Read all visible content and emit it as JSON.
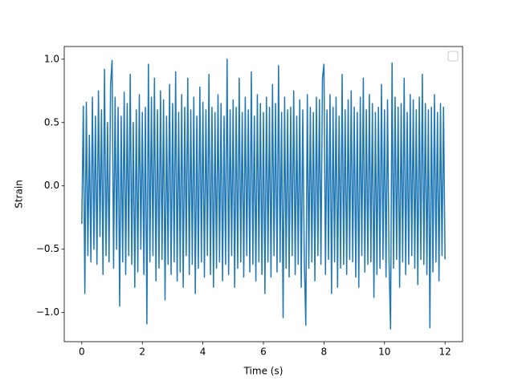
{
  "chart_data": {
    "type": "line",
    "xlabel": "Time (s)",
    "ylabel": "Strain",
    "xlim": [
      -0.58,
      12.58
    ],
    "ylim": [
      -1.23,
      1.1
    ],
    "xticks": [
      0,
      2,
      4,
      6,
      8,
      10,
      12
    ],
    "yticks": [
      {
        "value": -1.0,
        "label": "−1.0"
      },
      {
        "value": -0.5,
        "label": "−0.5"
      },
      {
        "value": 0.0,
        "label": "0.0"
      },
      {
        "value": 0.5,
        "label": "0.5"
      },
      {
        "value": 1.0,
        "label": "1.0"
      }
    ],
    "legend": "upper right",
    "series": [
      {
        "color": "#1f77b4",
        "x": [
          0,
          0.05,
          0.1,
          0.15,
          0.2,
          0.25,
          0.3,
          0.35,
          0.4,
          0.45,
          0.5,
          0.55,
          0.6,
          0.65,
          0.7,
          0.75,
          0.8,
          0.85,
          0.9,
          0.95,
          1,
          1.05,
          1.1,
          1.15,
          1.2,
          1.25,
          1.3,
          1.35,
          1.4,
          1.45,
          1.5,
          1.55,
          1.6,
          1.65,
          1.7,
          1.75,
          1.8,
          1.85,
          1.9,
          1.95,
          2,
          2.05,
          2.1,
          2.15,
          2.2,
          2.25,
          2.3,
          2.35,
          2.4,
          2.45,
          2.5,
          2.55,
          2.6,
          2.65,
          2.7,
          2.75,
          2.8,
          2.85,
          2.9,
          2.95,
          3,
          3.05,
          3.1,
          3.15,
          3.2,
          3.25,
          3.3,
          3.35,
          3.4,
          3.45,
          3.5,
          3.55,
          3.6,
          3.65,
          3.7,
          3.75,
          3.8,
          3.85,
          3.9,
          3.95,
          4,
          4.05,
          4.1,
          4.15,
          4.2,
          4.25,
          4.3,
          4.35,
          4.4,
          4.45,
          4.5,
          4.55,
          4.6,
          4.65,
          4.7,
          4.75,
          4.8,
          4.85,
          4.9,
          4.95,
          5,
          5.05,
          5.1,
          5.15,
          5.2,
          5.25,
          5.3,
          5.35,
          5.4,
          5.45,
          5.5,
          5.55,
          5.6,
          5.65,
          5.7,
          5.75,
          5.8,
          5.85,
          5.9,
          5.95,
          6,
          6.05,
          6.1,
          6.15,
          6.2,
          6.25,
          6.3,
          6.35,
          6.4,
          6.45,
          6.5,
          6.55,
          6.6,
          6.65,
          6.7,
          6.75,
          6.8,
          6.85,
          6.9,
          6.95,
          7,
          7.05,
          7.1,
          7.15,
          7.2,
          7.25,
          7.3,
          7.35,
          7.4,
          7.45,
          7.5,
          7.55,
          7.6,
          7.65,
          7.7,
          7.75,
          7.8,
          7.85,
          7.9,
          7.95,
          8,
          8.05,
          8.1,
          8.15,
          8.2,
          8.25,
          8.3,
          8.35,
          8.4,
          8.45,
          8.5,
          8.55,
          8.6,
          8.65,
          8.7,
          8.75,
          8.8,
          8.85,
          8.9,
          8.95,
          9,
          9.05,
          9.1,
          9.15,
          9.2,
          9.25,
          9.3,
          9.35,
          9.4,
          9.45,
          9.5,
          9.55,
          9.6,
          9.65,
          9.7,
          9.75,
          9.8,
          9.85,
          9.9,
          9.95,
          10,
          10.05,
          10.1,
          10.15,
          10.2,
          10.25,
          10.3,
          10.35,
          10.4,
          10.45,
          10.5,
          10.55,
          10.6,
          10.65,
          10.7,
          10.75,
          10.8,
          10.85,
          10.9,
          10.95,
          11,
          11.05,
          11.1,
          11.15,
          11.2,
          11.25,
          11.3,
          11.35,
          11.4,
          11.45,
          11.5,
          11.55,
          11.6,
          11.65,
          11.7,
          11.75,
          11.8,
          11.85,
          11.9,
          11.95,
          12
        ],
        "values": [
          -0.3,
          0.63,
          -0.85,
          0.66,
          -0.55,
          0.4,
          -0.6,
          0.7,
          -0.5,
          0.55,
          -0.62,
          0.75,
          -0.4,
          0.6,
          -0.7,
          0.92,
          -0.55,
          0.5,
          -0.6,
          0.8,
          0.99,
          -0.65,
          0.7,
          -0.5,
          0.62,
          -0.95,
          0.55,
          -0.6,
          0.74,
          -0.7,
          0.65,
          -0.55,
          0.88,
          -0.62,
          0.5,
          -0.8,
          0.6,
          -0.68,
          0.72,
          -0.5,
          0.58,
          -0.7,
          0.62,
          -1.09,
          0.96,
          -0.6,
          0.7,
          -0.55,
          0.85,
          -0.75,
          0.6,
          -0.65,
          0.75,
          -0.58,
          0.68,
          -0.9,
          0.55,
          -0.62,
          0.8,
          -0.7,
          0.65,
          -0.6,
          0.9,
          -0.75,
          0.58,
          -0.68,
          0.72,
          -0.8,
          0.62,
          -0.55,
          0.85,
          -0.7,
          0.6,
          -0.62,
          0.7,
          -0.85,
          0.55,
          -0.65,
          0.78,
          -0.6,
          0.66,
          -0.72,
          0.6,
          -0.55,
          0.88,
          -0.7,
          0.62,
          -0.8,
          0.58,
          -0.65,
          0.72,
          -0.6,
          0.65,
          -0.75,
          0.55,
          -0.62,
          1.0,
          -0.7,
          0.6,
          -0.55,
          0.68,
          -0.8,
          0.62,
          -0.65,
          0.85,
          -0.6,
          0.58,
          -0.72,
          0.7,
          -0.55,
          0.6,
          -0.68,
          0.9,
          -0.62,
          0.55,
          -0.75,
          0.72,
          -0.6,
          0.65,
          -0.7,
          0.58,
          -0.85,
          0.7,
          -0.6,
          0.62,
          -0.72,
          0.8,
          -0.55,
          0.65,
          -0.68,
          0.95,
          -0.6,
          0.58,
          -1.04,
          0.7,
          -0.65,
          0.6,
          -0.72,
          0.62,
          -0.55,
          0.75,
          -0.7,
          0.55,
          -0.62,
          0.68,
          -0.8,
          0.6,
          -0.58,
          -1.1,
          0.72,
          -0.65,
          0.62,
          -0.6,
          0.58,
          -0.75,
          0.7,
          -0.55,
          0.68,
          -0.62,
          0.85,
          0.96,
          -0.7,
          0.6,
          -0.58,
          0.72,
          -0.85,
          0.62,
          -0.6,
          0.7,
          -0.8,
          0.55,
          -0.65,
          0.88,
          -0.62,
          0.6,
          -0.7,
          0.68,
          -0.58,
          0.75,
          -0.6,
          0.62,
          -0.72,
          0.58,
          -0.8,
          0.7,
          -0.55,
          0.85,
          -0.68,
          0.6,
          -0.62,
          0.72,
          -0.6,
          0.65,
          -0.88,
          0.58,
          -0.7,
          0.62,
          -0.65,
          0.8,
          -0.58,
          0.6,
          -0.72,
          0.68,
          -0.6,
          -1.13,
          0.97,
          -0.65,
          0.7,
          -0.58,
          0.62,
          -0.8,
          0.65,
          -0.6,
          0.85,
          -0.7,
          0.58,
          -0.62,
          0.72,
          -0.55,
          0.68,
          -0.65,
          0.6,
          -0.78,
          0.7,
          -0.58,
          0.88,
          -0.62,
          0.65,
          -0.7,
          0.6,
          -1.12,
          0.62,
          -0.68,
          0.72,
          -0.6,
          0.58,
          -0.75,
          0.65,
          -0.55,
          0.62,
          -0.58
        ]
      }
    ]
  }
}
